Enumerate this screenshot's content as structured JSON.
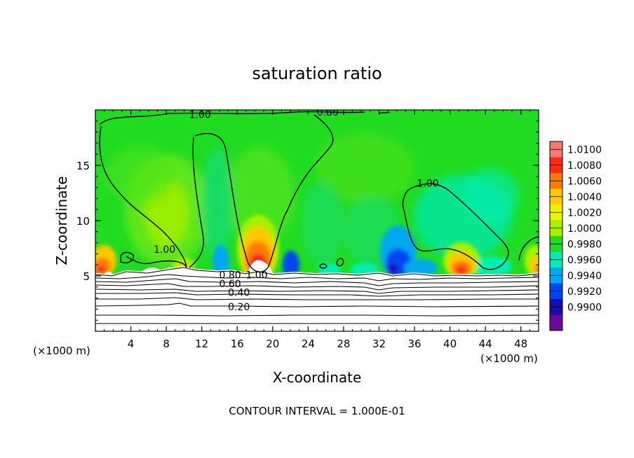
{
  "chart_data": {
    "type": "heatmap",
    "title": "saturation ratio",
    "xlabel": "X-coordinate",
    "ylabel": "Z-coordinate",
    "x_unit_left": "(×1000 m)",
    "x_unit_right": "(×1000 m)",
    "xlim": [
      0,
      50
    ],
    "ylim": [
      0,
      20
    ],
    "x_ticks": [
      4,
      8,
      12,
      16,
      20,
      24,
      28,
      32,
      36,
      40,
      44,
      48
    ],
    "y_ticks": [
      5,
      10,
      15
    ],
    "colorbar": {
      "levels": [
        "1.0100",
        "1.0080",
        "1.0060",
        "1.0040",
        "1.0020",
        "1.0000",
        "0.9980",
        "0.9960",
        "0.9940",
        "0.9920",
        "0.9900"
      ],
      "colors": [
        "#f27a7a",
        "#ff2a1a",
        "#ff7a00",
        "#ffc800",
        "#f0f000",
        "#a8f000",
        "#20dc20",
        "#00eeb0",
        "#00a8f0",
        "#0046f0",
        "#1a0ab8",
        "#6c0a9c"
      ]
    },
    "contour_labels": [
      {
        "text": "1.00",
        "x": 11.8,
        "z": 19.6
      },
      {
        "text": "0.80",
        "x": 26.2,
        "z": 19.8
      },
      {
        "text": "1.00",
        "x": 7.8,
        "z": 7.4
      },
      {
        "text": "1.00",
        "x": 37.5,
        "z": 13.4
      },
      {
        "text": "0.80",
        "x": 15.2,
        "z": 5.1
      },
      {
        "text": "1.00",
        "x": 18.2,
        "z": 5.1
      },
      {
        "text": "0.60",
        "x": 15.2,
        "z": 4.3
      },
      {
        "text": "0.40",
        "x": 16.2,
        "z": 3.5
      },
      {
        "text": "0.20",
        "x": 16.2,
        "z": 2.2
      }
    ],
    "contour_interval_text": "CONTOUR INTERVAL = 1.000E-01"
  }
}
